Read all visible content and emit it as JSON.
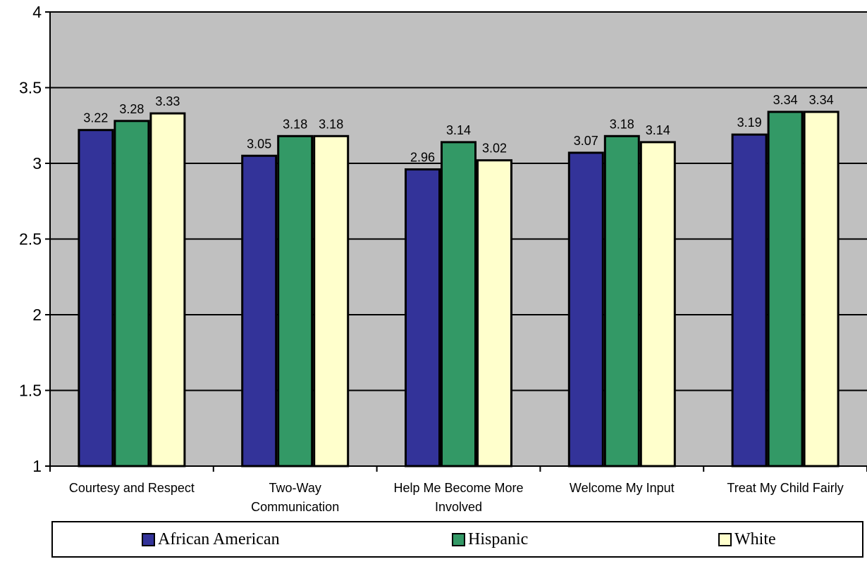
{
  "colors": {
    "plot_background": "#C0C0C0",
    "grid": "#000000",
    "series": [
      "#333399",
      "#339966",
      "#FFFFCC"
    ]
  },
  "chart_data": {
    "type": "bar",
    "title": "",
    "xlabel": "",
    "ylabel": "",
    "ylim": [
      1,
      4
    ],
    "yticks": [
      "1",
      "1.5",
      "2",
      "2.5",
      "3",
      "3.5",
      "4"
    ],
    "grid": true,
    "legend_position": "bottom",
    "categories": [
      [
        "Courtesy and Respect"
      ],
      [
        "Two-Way",
        "Communication"
      ],
      [
        "Help Me Become More",
        "Involved"
      ],
      [
        "Welcome My Input"
      ],
      [
        "Treat My Child Fairly"
      ]
    ],
    "series": [
      {
        "name": "African American",
        "values": [
          3.22,
          3.05,
          2.96,
          3.07,
          3.19
        ],
        "labels": [
          "3.22",
          "3.05",
          "2.96",
          "3.07",
          "3.19"
        ]
      },
      {
        "name": "Hispanic",
        "values": [
          3.28,
          3.18,
          3.14,
          3.18,
          3.34
        ],
        "labels": [
          "3.28",
          "3.18",
          "3.14",
          "3.18",
          "3.34"
        ]
      },
      {
        "name": "White",
        "values": [
          3.33,
          3.18,
          3.02,
          3.14,
          3.34
        ],
        "labels": [
          "3.33",
          "3.18",
          "3.02",
          "3.14",
          "3.34"
        ]
      }
    ]
  }
}
